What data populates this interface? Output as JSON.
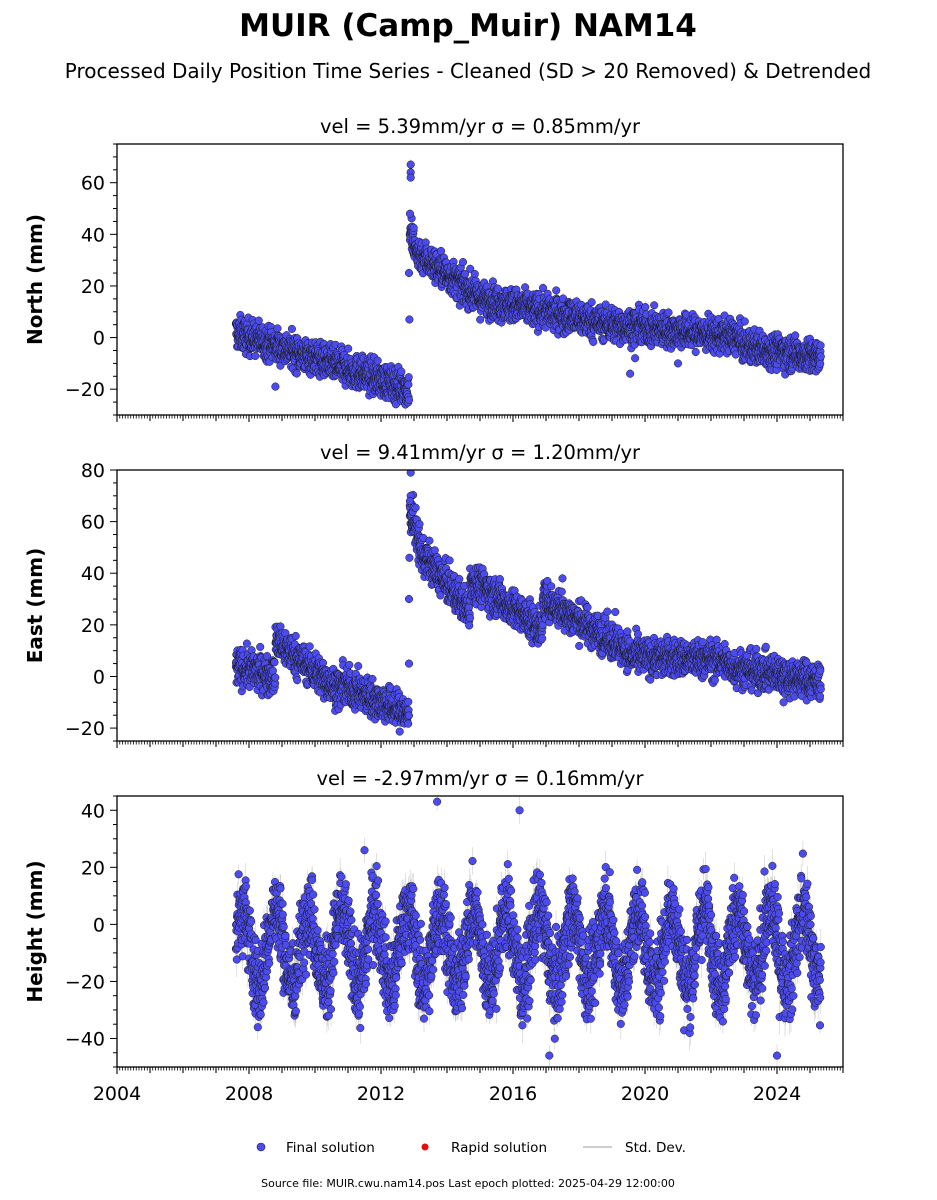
{
  "header": {
    "title": "MUIR (Camp_Muir) NAM14",
    "subtitle": "Processed Daily Position Time Series - Cleaned (SD > 20 Removed) & Detrended"
  },
  "chart_data": [
    {
      "type": "scatter",
      "panel": "north",
      "title": "vel = 5.39mm/yr   σ = 0.85mm/yr",
      "ylabel": "North (mm)",
      "xlim": [
        2004,
        2026
      ],
      "ylim": [
        -30,
        75
      ],
      "yticks": [
        -20,
        0,
        20,
        40,
        60
      ],
      "yticklabels": [
        "−20",
        "0",
        "20",
        "40",
        "60"
      ],
      "segments": [
        {
          "x0": 2007.6,
          "x1": 2012.85,
          "y0": 2,
          "y1": -20,
          "spread": 3.2
        },
        {
          "x0": 2012.87,
          "x1": 2013.0,
          "y0": 42,
          "y1": 36,
          "spread": 4
        },
        {
          "x0": 2013.0,
          "x1": 2015.0,
          "y0": 34,
          "y1": 15,
          "spread": 3.2
        },
        {
          "x0": 2015.0,
          "x1": 2019.0,
          "y0": 15,
          "y1": 5,
          "spread": 3.2
        },
        {
          "x0": 2019.0,
          "x1": 2022.9,
          "y0": 5,
          "y1": 0,
          "spread": 3.2
        },
        {
          "x0": 2022.9,
          "x1": 2025.33,
          "y0": -3,
          "y1": -8,
          "spread": 3.2
        }
      ],
      "outliers": [
        [
          2012.9,
          67
        ],
        [
          2012.9,
          64
        ],
        [
          2012.9,
          62
        ],
        [
          2012.88,
          48
        ],
        [
          2012.86,
          7
        ],
        [
          2012.85,
          25
        ],
        [
          2008.8,
          -19
        ],
        [
          2019.55,
          -14
        ],
        [
          2019.7,
          -8
        ],
        [
          2021.0,
          -10
        ]
      ]
    },
    {
      "type": "scatter",
      "panel": "east",
      "title": "vel = 9.41mm/yr   σ = 1.20mm/yr",
      "ylabel": "East (mm)",
      "xlim": [
        2004,
        2026
      ],
      "ylim": [
        -25,
        80
      ],
      "yticks": [
        -20,
        0,
        20,
        40,
        60,
        80
      ],
      "yticklabels": [
        "−20",
        "0",
        "20",
        "40",
        "60",
        "80"
      ],
      "segments": [
        {
          "x0": 2007.6,
          "x1": 2008.8,
          "y0": 4,
          "y1": 0,
          "spread": 3.5
        },
        {
          "x0": 2008.8,
          "x1": 2010.8,
          "y0": 14,
          "y1": -6,
          "spread": 3.5
        },
        {
          "x0": 2010.8,
          "x1": 2012.85,
          "y0": -3,
          "y1": -15,
          "spread": 3.5
        },
        {
          "x0": 2012.87,
          "x1": 2013.2,
          "y0": 65,
          "y1": 50,
          "spread": 4
        },
        {
          "x0": 2013.2,
          "x1": 2014.7,
          "y0": 48,
          "y1": 25,
          "spread": 3.5
        },
        {
          "x0": 2014.7,
          "x1": 2016.9,
          "y0": 38,
          "y1": 18,
          "spread": 3.5
        },
        {
          "x0": 2016.9,
          "x1": 2019.5,
          "y0": 30,
          "y1": 10,
          "spread": 3.5
        },
        {
          "x0": 2019.5,
          "x1": 2022.5,
          "y0": 8,
          "y1": 6,
          "spread": 3.5
        },
        {
          "x0": 2022.5,
          "x1": 2025.33,
          "y0": 4,
          "y1": -2,
          "spread": 3.5
        }
      ],
      "outliers": [
        [
          2012.9,
          79
        ],
        [
          2012.9,
          70
        ],
        [
          2012.88,
          68
        ],
        [
          2012.86,
          46
        ],
        [
          2012.85,
          30
        ],
        [
          2012.85,
          5
        ],
        [
          2017.5,
          38
        ],
        [
          2019.1,
          25
        ],
        [
          2024.2,
          -10
        ]
      ]
    },
    {
      "type": "scatter",
      "panel": "height",
      "title": "vel = -2.97mm/yr   σ = 0.16mm/yr",
      "ylabel": "Height (mm)",
      "xlim": [
        2004,
        2026
      ],
      "ylim": [
        -50,
        45
      ],
      "yticks": [
        -40,
        -20,
        0,
        20,
        40
      ],
      "yticklabels": [
        "−40",
        "−20",
        "0",
        "20",
        "40"
      ],
      "xticks": [
        2004,
        2008,
        2012,
        2016,
        2020,
        2024
      ],
      "xticklabels": [
        "2004",
        "2008",
        "2012",
        "2016",
        "2020",
        "2024"
      ],
      "segments": [
        {
          "x0": 2007.6,
          "x1": 2025.33,
          "y0": -8,
          "y1": -8,
          "seasonal_amplitude": 13,
          "spread": 7
        }
      ],
      "outliers": [
        [
          2013.7,
          43
        ],
        [
          2011.5,
          26
        ],
        [
          2016.2,
          40
        ],
        [
          2024.0,
          -46
        ],
        [
          2017.1,
          -46
        ]
      ]
    }
  ],
  "legend": {
    "placement": "bottom-center",
    "final_label": "Final solution",
    "rapid_label": "Rapid solution",
    "std_label": "Std. Dev.",
    "final_color": "#4b4bf0",
    "rapid_color": "#e01010",
    "std_color": "#bbbbbb"
  },
  "footer": {
    "source_text": "Source file: MUIR.cwu.nam14.pos  Last epoch plotted: 2025-04-29 12:00:00"
  },
  "colors": {
    "point_fill": "#4b4bf0",
    "point_edge": "#1a1a1a",
    "errorbar": "#9a9a9a"
  }
}
